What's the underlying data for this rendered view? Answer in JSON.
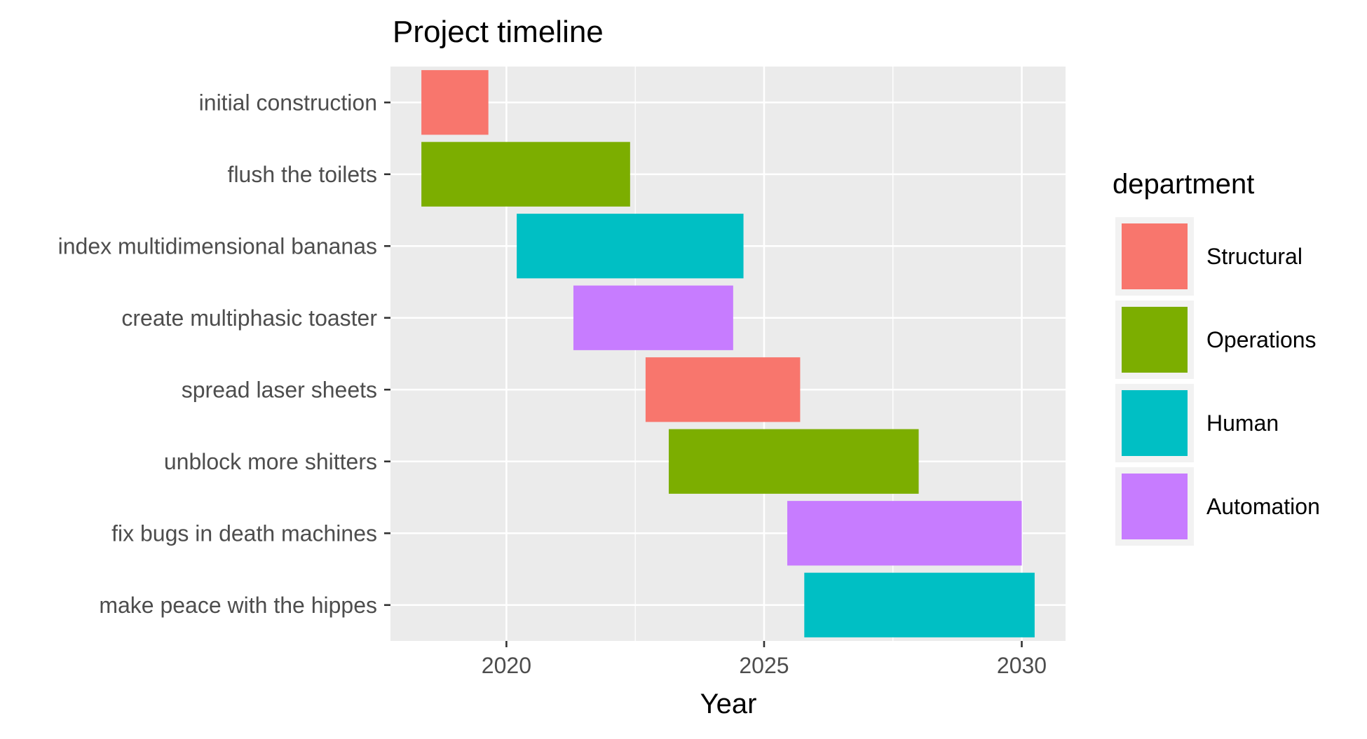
{
  "chart_data": {
    "type": "bar",
    "orientation": "horizontal-range",
    "title": "Project timeline",
    "xlabel": "Year",
    "ylabel": "",
    "xlim": [
      2017.75,
      2030.85
    ],
    "x_ticks": [
      2020,
      2025,
      2030
    ],
    "x_minor_ticks": [
      2022.5,
      2027.5
    ],
    "x_tick_labels": [
      "2020",
      "2025",
      "2030"
    ],
    "grid": true,
    "panel_background": "#EBEBEB",
    "grid_color": "#FFFFFF",
    "legend": {
      "title": "department",
      "position": "right",
      "entries": [
        {
          "name": "Structural",
          "color": "#F8766D"
        },
        {
          "name": "Operations",
          "color": "#7CAE00"
        },
        {
          "name": "Human",
          "color": "#00BFC4"
        },
        {
          "name": "Automation",
          "color": "#C77CFF"
        }
      ]
    },
    "tasks": [
      {
        "label": "initial construction",
        "start": 2018.35,
        "end": 2019.65,
        "department": "Structural"
      },
      {
        "label": "flush the toilets",
        "start": 2018.35,
        "end": 2022.4,
        "department": "Operations"
      },
      {
        "label": "index multidimensional bananas",
        "start": 2020.2,
        "end": 2024.6,
        "department": "Human"
      },
      {
        "label": "create multiphasic toaster",
        "start": 2021.3,
        "end": 2024.4,
        "department": "Automation"
      },
      {
        "label": "spread laser sheets",
        "start": 2022.7,
        "end": 2025.7,
        "department": "Structural"
      },
      {
        "label": "unblock more shitters",
        "start": 2023.15,
        "end": 2028.0,
        "department": "Operations"
      },
      {
        "label": "fix bugs in death machines",
        "start": 2025.45,
        "end": 2030.0,
        "department": "Automation"
      },
      {
        "label": "make peace with the hippes",
        "start": 2025.78,
        "end": 2030.25,
        "department": "Human"
      }
    ]
  }
}
